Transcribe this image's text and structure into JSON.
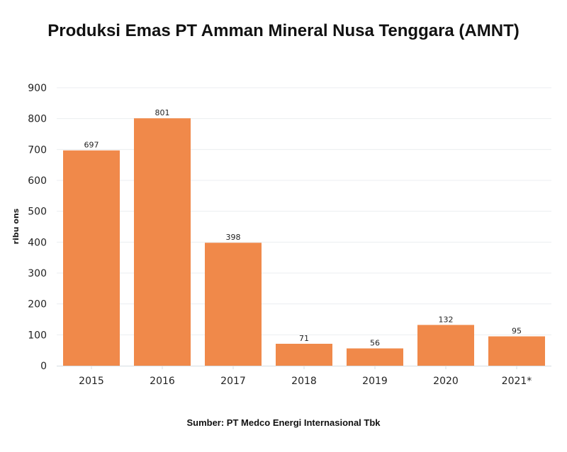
{
  "chart_data": {
    "type": "bar",
    "title": "Produksi Emas PT Amman Mineral Nusa Tenggara (AMNT)",
    "xlabel": "",
    "ylabel": "ribu ons",
    "categories": [
      "2015",
      "2016",
      "2017",
      "2018",
      "2019",
      "2020",
      "2021*"
    ],
    "values": [
      697,
      801,
      398,
      71,
      56,
      132,
      95
    ],
    "data_labels": [
      "697",
      "801",
      "398",
      "71",
      "56",
      "132",
      "95"
    ],
    "ylim": [
      0,
      900
    ],
    "yticks": [
      0,
      100,
      200,
      300,
      400,
      500,
      600,
      700,
      800,
      900
    ],
    "grid": true,
    "legend": "none",
    "bar_color": "#f0894a",
    "source": "Sumber: PT Medco Energi Internasional Tbk"
  }
}
